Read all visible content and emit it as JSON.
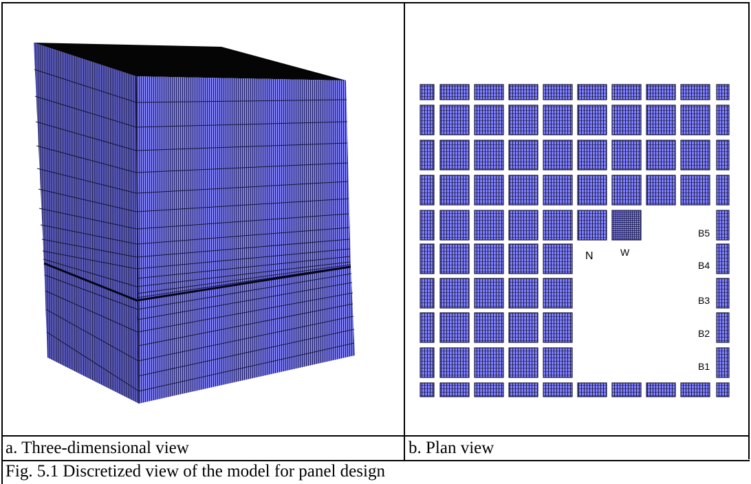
{
  "panel_a": {
    "caption": "a. Three-dimensional view"
  },
  "panel_b": {
    "caption": "b. Plan view",
    "labels": {
      "n": "N",
      "w": "W",
      "b5": "B5",
      "b4": "B4",
      "b3": "B3",
      "b2": "B2",
      "b1": "B1"
    }
  },
  "figure_caption": "Fig. 5.1 Discretized view of the model for panel design",
  "colors": {
    "mesh_fill": "#8080ff",
    "mesh_line": "#1a1a40",
    "top_face": "#050505"
  }
}
